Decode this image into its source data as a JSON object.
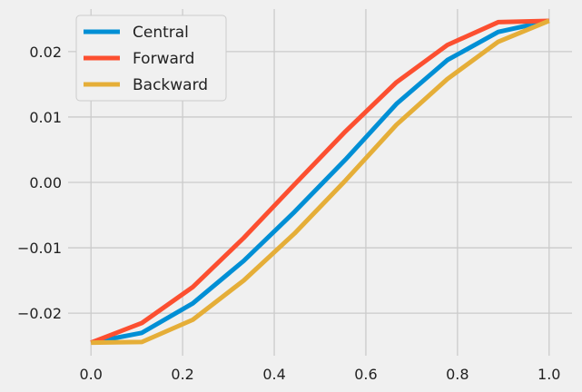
{
  "chart_data": {
    "type": "line",
    "x": [
      0.0,
      0.1111,
      0.2222,
      0.3333,
      0.4444,
      0.5556,
      0.6667,
      0.7778,
      0.8889,
      1.0
    ],
    "series": [
      {
        "name": "Central",
        "color": "#008fd5",
        "values": [
          -0.0245,
          -0.023,
          -0.0185,
          -0.012,
          -0.0045,
          0.0035,
          0.012,
          0.0187,
          0.023,
          0.0247
        ]
      },
      {
        "name": "Forward",
        "color": "#fc4f30",
        "values": [
          -0.0245,
          -0.0215,
          -0.016,
          -0.0085,
          -0.0003,
          0.0078,
          0.0153,
          0.021,
          0.0245,
          0.0247
        ]
      },
      {
        "name": "Backward",
        "color": "#e5ae38",
        "values": [
          -0.0245,
          -0.0244,
          -0.021,
          -0.015,
          -0.0078,
          0.0003,
          0.0088,
          0.0158,
          0.0215,
          0.0247
        ]
      }
    ],
    "xlim": [
      -0.05,
      1.05
    ],
    "ylim": [
      -0.0265,
      0.0265
    ],
    "xticks": [
      0.0,
      0.2,
      0.4,
      0.6,
      0.8,
      1.0
    ],
    "xtick_labels": [
      "0.0",
      "0.2",
      "0.4",
      "0.6",
      "0.8",
      "1.0"
    ],
    "yticks": [
      -0.02,
      -0.01,
      0.0,
      0.01,
      0.02
    ],
    "ytick_labels": [
      "−0.02",
      "−0.01",
      "0.00",
      "0.01",
      "0.02"
    ],
    "grid": true,
    "legend_position": "upper-left",
    "title": "",
    "xlabel": "",
    "ylabel": ""
  }
}
